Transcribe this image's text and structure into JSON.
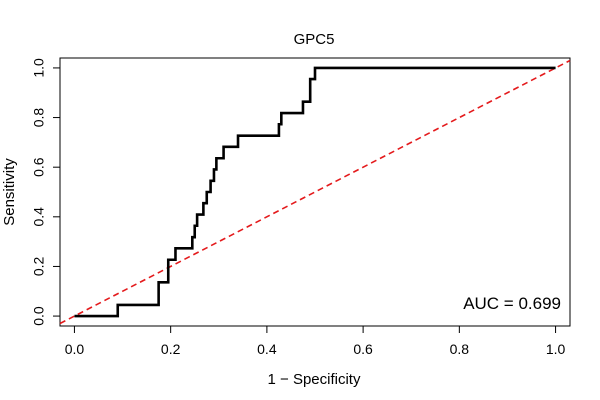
{
  "chart_data": {
    "type": "line",
    "title": "GPC5",
    "xlabel": "1 − Specificity",
    "ylabel": "Sensitivity",
    "xlim": [
      -0.03,
      1.03
    ],
    "ylim": [
      -0.04,
      1.04
    ],
    "x_ticks": [
      "0.0",
      "0.2",
      "0.4",
      "0.6",
      "0.8",
      "1.0"
    ],
    "y_ticks": [
      "0.0",
      "0.2",
      "0.4",
      "0.6",
      "0.8",
      "1.0"
    ],
    "grid": false,
    "auc_label": "AUC = 0.699",
    "colors": {
      "roc": "#000000",
      "diagonal": "#e41a1c"
    },
    "series": [
      {
        "name": "ROC",
        "style": "step",
        "points": [
          [
            0.0,
            0.0
          ],
          [
            0.09,
            0.0
          ],
          [
            0.09,
            0.045
          ],
          [
            0.175,
            0.045
          ],
          [
            0.175,
            0.136
          ],
          [
            0.195,
            0.136
          ],
          [
            0.195,
            0.227
          ],
          [
            0.21,
            0.227
          ],
          [
            0.21,
            0.273
          ],
          [
            0.245,
            0.273
          ],
          [
            0.245,
            0.318
          ],
          [
            0.25,
            0.318
          ],
          [
            0.25,
            0.364
          ],
          [
            0.255,
            0.364
          ],
          [
            0.255,
            0.409
          ],
          [
            0.268,
            0.409
          ],
          [
            0.268,
            0.455
          ],
          [
            0.275,
            0.455
          ],
          [
            0.275,
            0.5
          ],
          [
            0.283,
            0.5
          ],
          [
            0.283,
            0.545
          ],
          [
            0.29,
            0.545
          ],
          [
            0.29,
            0.591
          ],
          [
            0.295,
            0.591
          ],
          [
            0.295,
            0.636
          ],
          [
            0.31,
            0.636
          ],
          [
            0.31,
            0.682
          ],
          [
            0.34,
            0.682
          ],
          [
            0.34,
            0.727
          ],
          [
            0.425,
            0.727
          ],
          [
            0.425,
            0.773
          ],
          [
            0.43,
            0.773
          ],
          [
            0.43,
            0.818
          ],
          [
            0.475,
            0.818
          ],
          [
            0.475,
            0.864
          ],
          [
            0.49,
            0.864
          ],
          [
            0.49,
            0.955
          ],
          [
            0.5,
            0.955
          ],
          [
            0.5,
            1.0
          ],
          [
            1.0,
            1.0
          ]
        ]
      },
      {
        "name": "Chance",
        "style": "dashed",
        "points": [
          [
            -0.03,
            -0.03
          ],
          [
            1.03,
            1.03
          ]
        ]
      }
    ]
  }
}
